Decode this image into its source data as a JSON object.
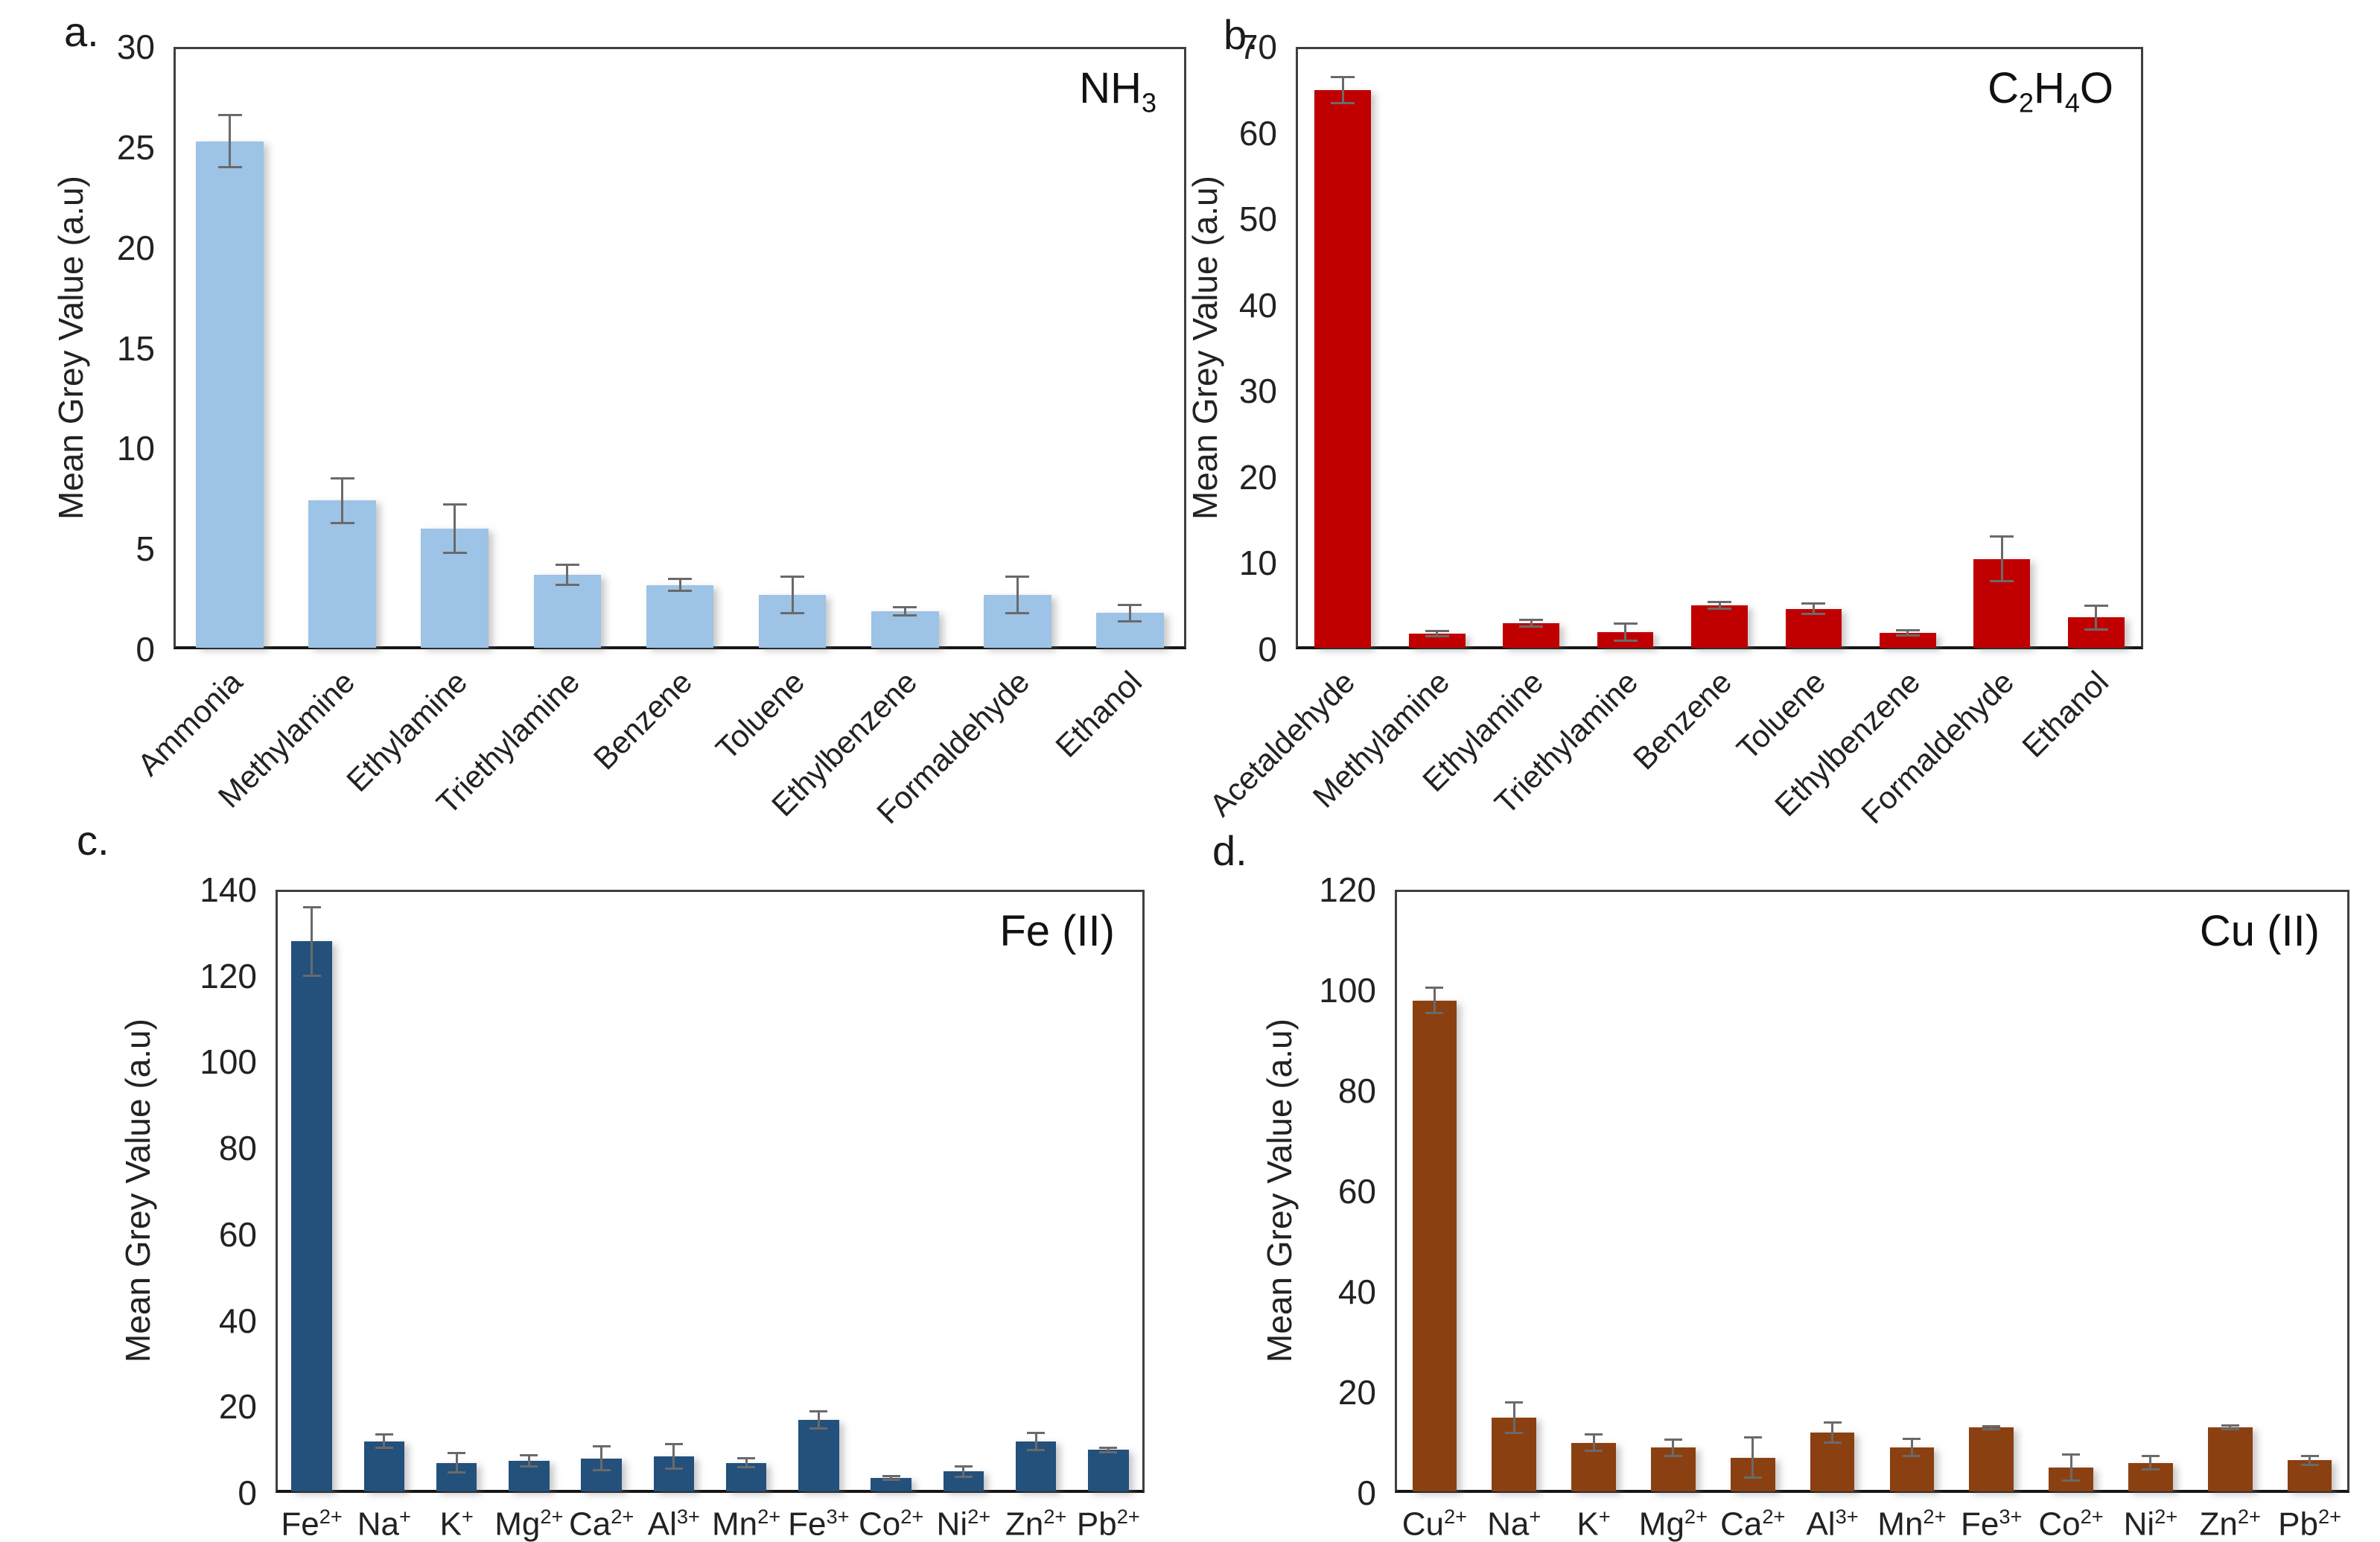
{
  "figure_title": "",
  "chart_data": [
    {
      "id": "a",
      "type": "bar",
      "letter": "a.",
      "title": [
        {
          "t": "NH"
        },
        {
          "t": "3",
          "s": "sub"
        }
      ],
      "ylabel": "Mean Grey Value (a.u)",
      "ylim": [
        0,
        30
      ],
      "ystep": 5,
      "grid": false,
      "legend": "none",
      "bar_color": "#9DC3E6",
      "error_color": "#6a6a6a",
      "categories": [
        [
          {
            "t": "Ammonia"
          }
        ],
        [
          {
            "t": "Methylamine"
          }
        ],
        [
          {
            "t": "Ethylamine"
          }
        ],
        [
          {
            "t": "Triethylamine"
          }
        ],
        [
          {
            "t": "Benzene"
          }
        ],
        [
          {
            "t": "Toluene"
          }
        ],
        [
          {
            "t": "Ethylbenzene"
          }
        ],
        [
          {
            "t": "Formaldehyde"
          }
        ],
        [
          {
            "t": "Ethanol"
          }
        ]
      ],
      "values": [
        25.3,
        7.4,
        6.0,
        3.7,
        3.2,
        2.7,
        1.9,
        2.7,
        1.8
      ],
      "errors": [
        1.3,
        1.1,
        1.2,
        0.5,
        0.3,
        0.9,
        0.2,
        0.9,
        0.4
      ]
    },
    {
      "id": "b",
      "type": "bar",
      "letter": "b.",
      "title": [
        {
          "t": "C"
        },
        {
          "t": "2",
          "s": "sub"
        },
        {
          "t": "H"
        },
        {
          "t": "4",
          "s": "sub"
        },
        {
          "t": "O"
        }
      ],
      "ylabel": "Mean Grey Value (a.u)",
      "ylim": [
        0,
        70
      ],
      "ystep": 10,
      "grid": false,
      "legend": "none",
      "bar_color": "#C00000",
      "error_color": "#6a6a6a",
      "categories": [
        [
          {
            "t": "Acetaldehyde"
          }
        ],
        [
          {
            "t": "Methylamine"
          }
        ],
        [
          {
            "t": "Ethylamine"
          }
        ],
        [
          {
            "t": "Triethylamine"
          }
        ],
        [
          {
            "t": "Benzene"
          }
        ],
        [
          {
            "t": "Toluene"
          }
        ],
        [
          {
            "t": "Ethylbenzene"
          }
        ],
        [
          {
            "t": "Formaldehyde"
          }
        ],
        [
          {
            "t": "Ethanol"
          }
        ]
      ],
      "values": [
        65.0,
        1.8,
        3.0,
        2.0,
        5.1,
        4.7,
        1.9,
        10.5,
        3.7
      ],
      "errors": [
        1.5,
        0.3,
        0.4,
        1.0,
        0.4,
        0.6,
        0.3,
        2.6,
        1.4
      ]
    },
    {
      "id": "c",
      "type": "bar",
      "letter": "c.",
      "title": [
        {
          "t": "Fe (II)"
        }
      ],
      "ylabel": "Mean Grey Value (a.u)",
      "ylim": [
        0,
        140
      ],
      "ystep": 20,
      "grid": false,
      "legend": "none",
      "bar_color": "#24507C",
      "error_color": "#6a6a6a",
      "categories": [
        [
          {
            "t": "Fe"
          },
          {
            "t": "2+",
            "s": "sup"
          }
        ],
        [
          {
            "t": "Na"
          },
          {
            "t": "+",
            "s": "sup"
          }
        ],
        [
          {
            "t": "K"
          },
          {
            "t": "+",
            "s": "sup"
          }
        ],
        [
          {
            "t": "Mg"
          },
          {
            "t": "2+",
            "s": "sup"
          }
        ],
        [
          {
            "t": "Ca"
          },
          {
            "t": "2+",
            "s": "sup"
          }
        ],
        [
          {
            "t": "Al"
          },
          {
            "t": "3+",
            "s": "sup"
          }
        ],
        [
          {
            "t": "Mn"
          },
          {
            "t": "2+",
            "s": "sup"
          }
        ],
        [
          {
            "t": "Fe"
          },
          {
            "t": "3+",
            "s": "sup"
          }
        ],
        [
          {
            "t": "Co"
          },
          {
            "t": "2+",
            "s": "sup"
          }
        ],
        [
          {
            "t": "Ni"
          },
          {
            "t": "2+",
            "s": "sup"
          }
        ],
        [
          {
            "t": "Zn"
          },
          {
            "t": "2+",
            "s": "sup"
          }
        ],
        [
          {
            "t": "Pb"
          },
          {
            "t": "2+",
            "s": "sup"
          }
        ]
      ],
      "values": [
        128,
        12,
        7,
        7.5,
        8,
        8.5,
        7,
        17,
        3.5,
        5,
        12,
        10
      ],
      "errors": [
        8,
        1.5,
        2.2,
        1.3,
        2.8,
        2.8,
        1.0,
        2.0,
        0.4,
        1.2,
        2.0,
        0.5
      ]
    },
    {
      "id": "d",
      "type": "bar",
      "letter": "d.",
      "title": [
        {
          "t": "Cu (II)"
        }
      ],
      "ylabel": "Mean Grey Value (a.u)",
      "ylim": [
        0,
        120
      ],
      "ystep": 20,
      "grid": false,
      "legend": "none",
      "bar_color": "#8B4012",
      "error_color": "#6a6a6a",
      "categories": [
        [
          {
            "t": "Cu"
          },
          {
            "t": "2+",
            "s": "sup"
          }
        ],
        [
          {
            "t": "Na"
          },
          {
            "t": "+",
            "s": "sup"
          }
        ],
        [
          {
            "t": "K"
          },
          {
            "t": "+",
            "s": "sup"
          }
        ],
        [
          {
            "t": "Mg"
          },
          {
            "t": "2+",
            "s": "sup"
          }
        ],
        [
          {
            "t": "Ca"
          },
          {
            "t": "2+",
            "s": "sup"
          }
        ],
        [
          {
            "t": "Al"
          },
          {
            "t": "3+",
            "s": "sup"
          }
        ],
        [
          {
            "t": "Mn"
          },
          {
            "t": "2+",
            "s": "sup"
          }
        ],
        [
          {
            "t": "Fe"
          },
          {
            "t": "3+",
            "s": "sup"
          }
        ],
        [
          {
            "t": "Co"
          },
          {
            "t": "2+",
            "s": "sup"
          }
        ],
        [
          {
            "t": "Ni"
          },
          {
            "t": "2+",
            "s": "sup"
          }
        ],
        [
          {
            "t": "Zn"
          },
          {
            "t": "2+",
            "s": "sup"
          }
        ],
        [
          {
            "t": "Pb"
          },
          {
            "t": "2+",
            "s": "sup"
          }
        ]
      ],
      "values": [
        98,
        15,
        10,
        9,
        7,
        12,
        9,
        13,
        5,
        6,
        13,
        6.5
      ],
      "errors": [
        2.5,
        3.0,
        1.7,
        1.6,
        4.0,
        2.0,
        1.7,
        0.3,
        2.6,
        1.3,
        0.4,
        0.9
      ]
    }
  ]
}
